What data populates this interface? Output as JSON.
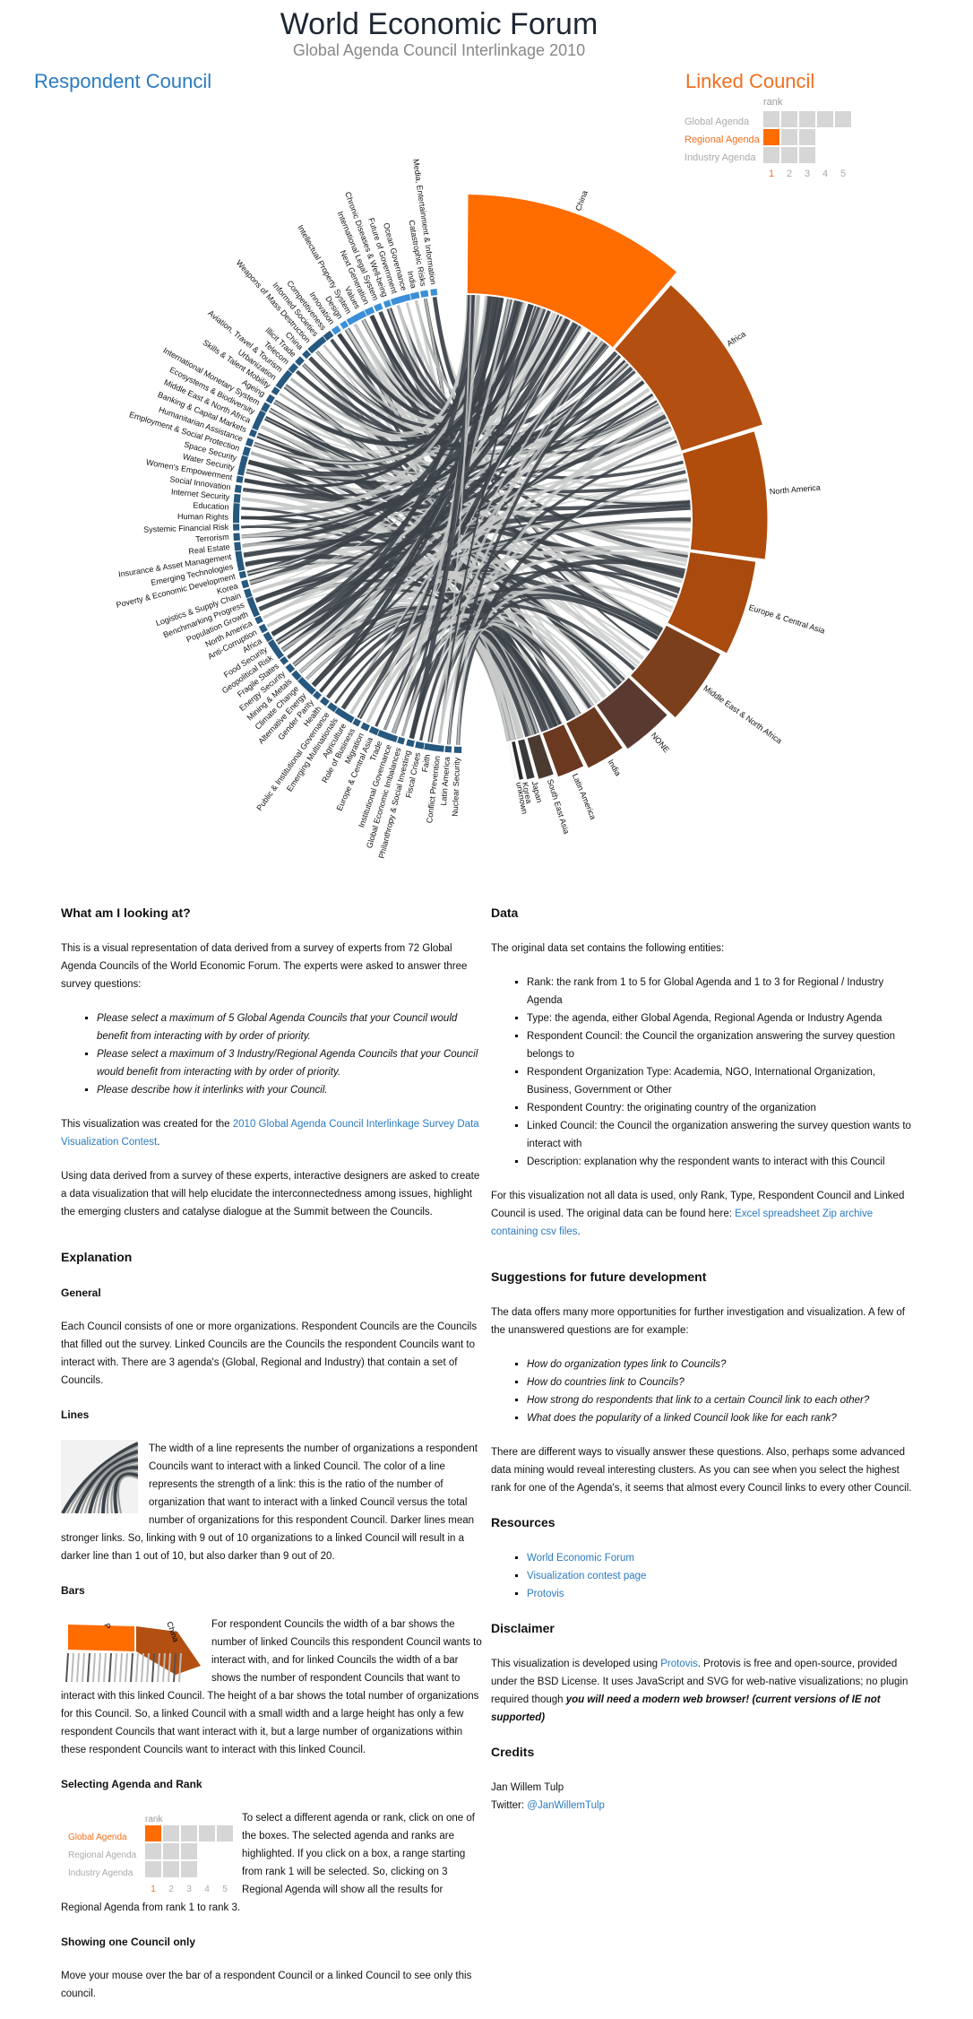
{
  "header": {
    "title": "World Economic Forum",
    "subtitle": "Global Agenda Council Interlinkage 2010",
    "respondent_heading": "Respondent Council",
    "linked_heading": "Linked Council"
  },
  "selector": {
    "rank_label": "rank",
    "rows": [
      {
        "label": "Global Agenda",
        "cells": 5,
        "active": false
      },
      {
        "label": "Regional Agenda",
        "cells": 3,
        "active": true
      },
      {
        "label": "Industry Agenda",
        "cells": 3,
        "active": false
      }
    ],
    "ranks": [
      "1",
      "2",
      "3",
      "4",
      "5"
    ],
    "selected_rank": 1
  },
  "colors": {
    "respondent_blue": "#2b7bc0",
    "linked_orange": "#ff6c00",
    "link_dark": "#3c4348",
    "link_light": "#c8cbc9"
  },
  "chord": {
    "respondent_councils": [
      "Media, Entertainment & Information",
      "Catastrophic Risks",
      "India",
      "Ocean Governance",
      "Future of Government",
      "Chronic Diseases & Well-being",
      "International Legal System",
      "Next Generation",
      "Values",
      "Intellectual Property System",
      "Design",
      "Innovation",
      "Competitiveness",
      "Informed Societies",
      "Weapons of Mass Destruction",
      "China",
      "Illicit Trade",
      "Telecom",
      "Aviation, Travel & Tourism",
      "Urbanization",
      "Skills & Talent Mobility",
      "Ageing",
      "International Monetary System",
      "Ecosystems & Biodiversity",
      "Middle East & North Africa",
      "Banking & Capital Markets",
      "Humanitarian Assistance",
      "Employment & Social Protection",
      "Space Security",
      "Water Security",
      "Women's Empowerment",
      "Social Innovation",
      "Internet Security",
      "Education",
      "Human Rights",
      "Systemic Financial Risk",
      "Terrorism",
      "Real Estate",
      "Insurance & Asset Management",
      "Emerging Technologies",
      "Poverty & Economic Development",
      "Korea",
      "Logistics & Supply Chain",
      "Benchmarking Progress",
      "Population Growth",
      "North America",
      "Anti-Corruption",
      "Africa",
      "Food Security",
      "Geopolitical Risk",
      "Fragile States",
      "Energy Security",
      "Mining & Metals",
      "Climate Change",
      "Alternative Energy",
      "Gender Parity",
      "Health",
      "Public & Institutional Governance",
      "Emerging Multinationals",
      "Agriculture",
      "Role of Business",
      "Migration",
      "Europe & Central Asia",
      "Trade",
      "Institutional Governance",
      "Global Economic Imbalances",
      "Philanthropy & Social Investing",
      "Fiscal Crises",
      "Faith",
      "Conflict Prevention",
      "Latin America",
      "Nuclear Security"
    ],
    "linked_councils": [
      {
        "name": "China",
        "value": 100
      },
      {
        "name": "Africa",
        "value": 78
      },
      {
        "name": "North America",
        "value": 62
      },
      {
        "name": "Europe & Central Asia",
        "value": 48
      },
      {
        "name": "Middle East & North Africa",
        "value": 40
      },
      {
        "name": "NONE",
        "value": 28
      },
      {
        "name": "India",
        "value": 22
      },
      {
        "name": "Latin America",
        "value": 16
      },
      {
        "name": "South East Asia",
        "value": 10
      },
      {
        "name": "Japan",
        "value": 6
      },
      {
        "name": "Korea",
        "value": 4
      },
      {
        "name": "unknown",
        "value": 2
      }
    ]
  },
  "left": {
    "looking_heading": "What am I looking at?",
    "looking_p1": "This is a visual representation of data derived from a survey of experts from 72 Global Agenda Councils of the World Economic Forum. The experts were asked to answer three survey questions:",
    "questions": [
      "Please select a maximum of 5 Global Agenda Councils that your Council would benefit from interacting with by order of priority.",
      "Please select a maximum of 3 Industry/Regional Agenda Councils that your Council would benefit from interacting with by order of priority.",
      "Please describe how it interlinks with your Council."
    ],
    "created_pre": "This visualization was created for the ",
    "created_link": "2010 Global Agenda Council Interlinkage Survey Data Visualization Contest",
    "created_post": ".",
    "looking_p3": "Using data derived from a survey of these experts, interactive designers are asked to create a data visualization that will help elucidate the interconnectedness among issues, highlight the emerging clusters and catalyse dialogue at the Summit between the Councils.",
    "explanation_heading": "Explanation",
    "general_heading": "General",
    "general_text": "Each Council consists of one or more organizations. Respondent Councils are the Councils that filled out the survey. Linked Councils are the Councils the respondent Councils want to interact with. There are 3 agenda's (Global, Regional and Industry) that contain a set of Councils.",
    "lines_heading": "Lines",
    "lines_text": "The width of a line represents the number of organizations a respondent Councils want to interact with a linked Council. The color of a line represents the strength of a link: this is the ratio of the number of organization that want to interact with a linked Council versus the total number of organizations for this respondent Council. Darker lines mean stronger links. So, linking with 9 out of 10 organizations to a linked Council will result in a darker line than 1 out of 10, but also darker than 9 out of 20.",
    "bars_heading": "Bars",
    "bars_thumb_labels": [
      "P",
      "China"
    ],
    "bars_text": "For respondent Councils the width of a bar shows the number of linked Councils this respondent Council wants to interact with, and for linked Councils the width of a bar shows the number of respondent Councils that want to interact with this linked Council. The height of a bar shows the total number of organizations for this Council. So, a linked Council with a small width and a large height has only a few respondent Councils that want interact with it, but a large number of organizations within these respondent Councils want to interact with this linked Council.",
    "selecting_heading": "Selecting Agenda and Rank",
    "selecting_rows": [
      "Global Agenda",
      "Regional Agenda",
      "Industry Agenda"
    ],
    "selecting_text": "To select a different agenda or rank, click on one of the boxes. The selected agenda and ranks are highlighted. If you click on a box, a range starting from rank 1 will be selected. So, clicking on 3 Regional Agenda will show all the results for Regional Agenda from rank 1 to rank 3.",
    "showing_heading": "Showing one Council only",
    "showing_text": "Move your mouse over the bar of a respondent Council or a linked Council to see only this council."
  },
  "right": {
    "data_heading": "Data",
    "data_p1": "The original data set contains the following entities:",
    "entities": [
      "Rank: the rank from 1 to 5 for Global Agenda and 1 to 3 for Regional / Industry Agenda",
      "Type: the agenda, either Global Agenda, Regional Agenda or Industry Agenda",
      "Respondent Council: the Council the organization answering the survey question belongs to",
      "Respondent Organization Type: Academia, NGO, International Organization, Business, Government or Other",
      "Respondent Country: the originating country of the organization",
      "Linked Council: the Council the organization answering the survey question wants to interact with",
      "Description: explanation why the respondent wants to interact with this Council"
    ],
    "data_p2_pre": "For this visualization not all data is used, only Rank, Type, Respondent Council and Linked Council is used. The original data can be found here: ",
    "data_p2_link": "Excel spreadsheet Zip archive containing csv files",
    "data_p2_post": ".",
    "future_heading": "Suggestions for future development",
    "future_p1": "The data offers many more opportunities for further investigation and visualization. A few of the unanswered questions are for example:",
    "future_questions": [
      "How do organization types link to Councils?",
      "How do countries link to Councils?",
      "How strong do respondents that link to a certain Council link to each other?",
      "What does the popularity of a linked Council look like for each rank?"
    ],
    "future_p2": "There are different ways to visually answer these questions. Also, perhaps some advanced data mining would reveal interesting clusters. As you can see when you select the highest rank for one of the Agenda's, it seems that almost every Council links to every other Council.",
    "resources_heading": "Resources",
    "resources": [
      "World Economic Forum",
      "Visualization contest page",
      "Protovis"
    ],
    "disclaimer_heading": "Disclaimer",
    "disclaimer_pre": "This visualization is developed using ",
    "disclaimer_link": "Protovis",
    "disclaimer_mid": ". Protovis is free and open-source, provided under the BSD License. It uses JavaScript and SVG for web-native visualizations; no plugin required though ",
    "disclaimer_bold": "you will need a modern web browser! (current versions of IE not supported)",
    "credits_heading": "Credits",
    "credits_name": "Jan Willem Tulp",
    "credits_twitter_label": "Twitter: ",
    "credits_twitter": "@JanWillemTulp"
  }
}
